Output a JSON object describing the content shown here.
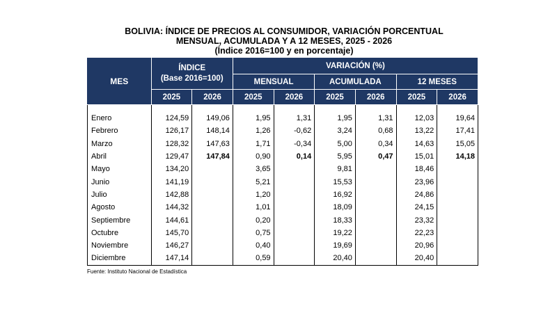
{
  "title": {
    "line1": "BOLIVIA: ÍNDICE DE PRECIOS AL CONSUMIDOR, VARIACIÓN PORCENTUAL",
    "line2": "MENSUAL, ACUMULADA Y A 12 MESES, 2025 - 2026",
    "line3": "(Índice 2016=100 y en porcentaje)"
  },
  "headers": {
    "mes": "MES",
    "indice_line1": "ÍNDICE",
    "indice_line2": "(Base 2016=100)",
    "variacion": "VARIACIÓN (%)",
    "mensual": "MENSUAL",
    "acumulada": "ACUMULADA",
    "doce_meses": "12 MESES",
    "y2025": "2025",
    "y2026": "2026"
  },
  "rows": [
    {
      "mes": "Enero",
      "i25": "124,59",
      "i26": "149,06",
      "m25": "1,95",
      "m26": "1,31",
      "a25": "1,95",
      "a26": "1,31",
      "d25": "12,03",
      "d26": "19,64"
    },
    {
      "mes": "Febrero",
      "i25": "126,17",
      "i26": "148,14",
      "m25": "1,26",
      "m26": "-0,62",
      "a25": "3,24",
      "a26": "0,68",
      "d25": "13,22",
      "d26": "17,41"
    },
    {
      "mes": "Marzo",
      "i25": "128,32",
      "i26": "147,63",
      "m25": "1,71",
      "m26": "-0,34",
      "a25": "5,00",
      "a26": "0,34",
      "d25": "14,63",
      "d26": "15,05"
    },
    {
      "mes": "Abril",
      "i25": "129,47",
      "i26": "147,84",
      "m25": "0,90",
      "m26": "0,14",
      "a25": "5,95",
      "a26": "0,47",
      "d25": "15,01",
      "d26": "14,18"
    },
    {
      "mes": "Mayo",
      "i25": "134,20",
      "i26": "",
      "m25": "3,65",
      "m26": "",
      "a25": "9,81",
      "a26": "",
      "d25": "18,46",
      "d26": ""
    },
    {
      "mes": "Junio",
      "i25": "141,19",
      "i26": "",
      "m25": "5,21",
      "m26": "",
      "a25": "15,53",
      "a26": "",
      "d25": "23,96",
      "d26": ""
    },
    {
      "mes": "Julio",
      "i25": "142,88",
      "i26": "",
      "m25": "1,20",
      "m26": "",
      "a25": "16,92",
      "a26": "",
      "d25": "24,86",
      "d26": ""
    },
    {
      "mes": "Agosto",
      "i25": "144,32",
      "i26": "",
      "m25": "1,01",
      "m26": "",
      "a25": "18,09",
      "a26": "",
      "d25": "24,15",
      "d26": ""
    },
    {
      "mes": "Septiembre",
      "i25": "144,61",
      "i26": "",
      "m25": "0,20",
      "m26": "",
      "a25": "18,33",
      "a26": "",
      "d25": "23,32",
      "d26": ""
    },
    {
      "mes": "Octubre",
      "i25": "145,70",
      "i26": "",
      "m25": "0,75",
      "m26": "",
      "a25": "19,22",
      "a26": "",
      "d25": "22,23",
      "d26": ""
    },
    {
      "mes": "Noviembre",
      "i25": "146,27",
      "i26": "",
      "m25": "0,40",
      "m26": "",
      "a25": "19,69",
      "a26": "",
      "d25": "20,96",
      "d26": ""
    },
    {
      "mes": "Diciembre",
      "i25": "147,14",
      "i26": "",
      "m25": "0,59",
      "m26": "",
      "a25": "20,40",
      "a26": "",
      "d25": "20,40",
      "d26": ""
    }
  ],
  "source": "Fuente: Instituto Nacional de Estadística"
}
